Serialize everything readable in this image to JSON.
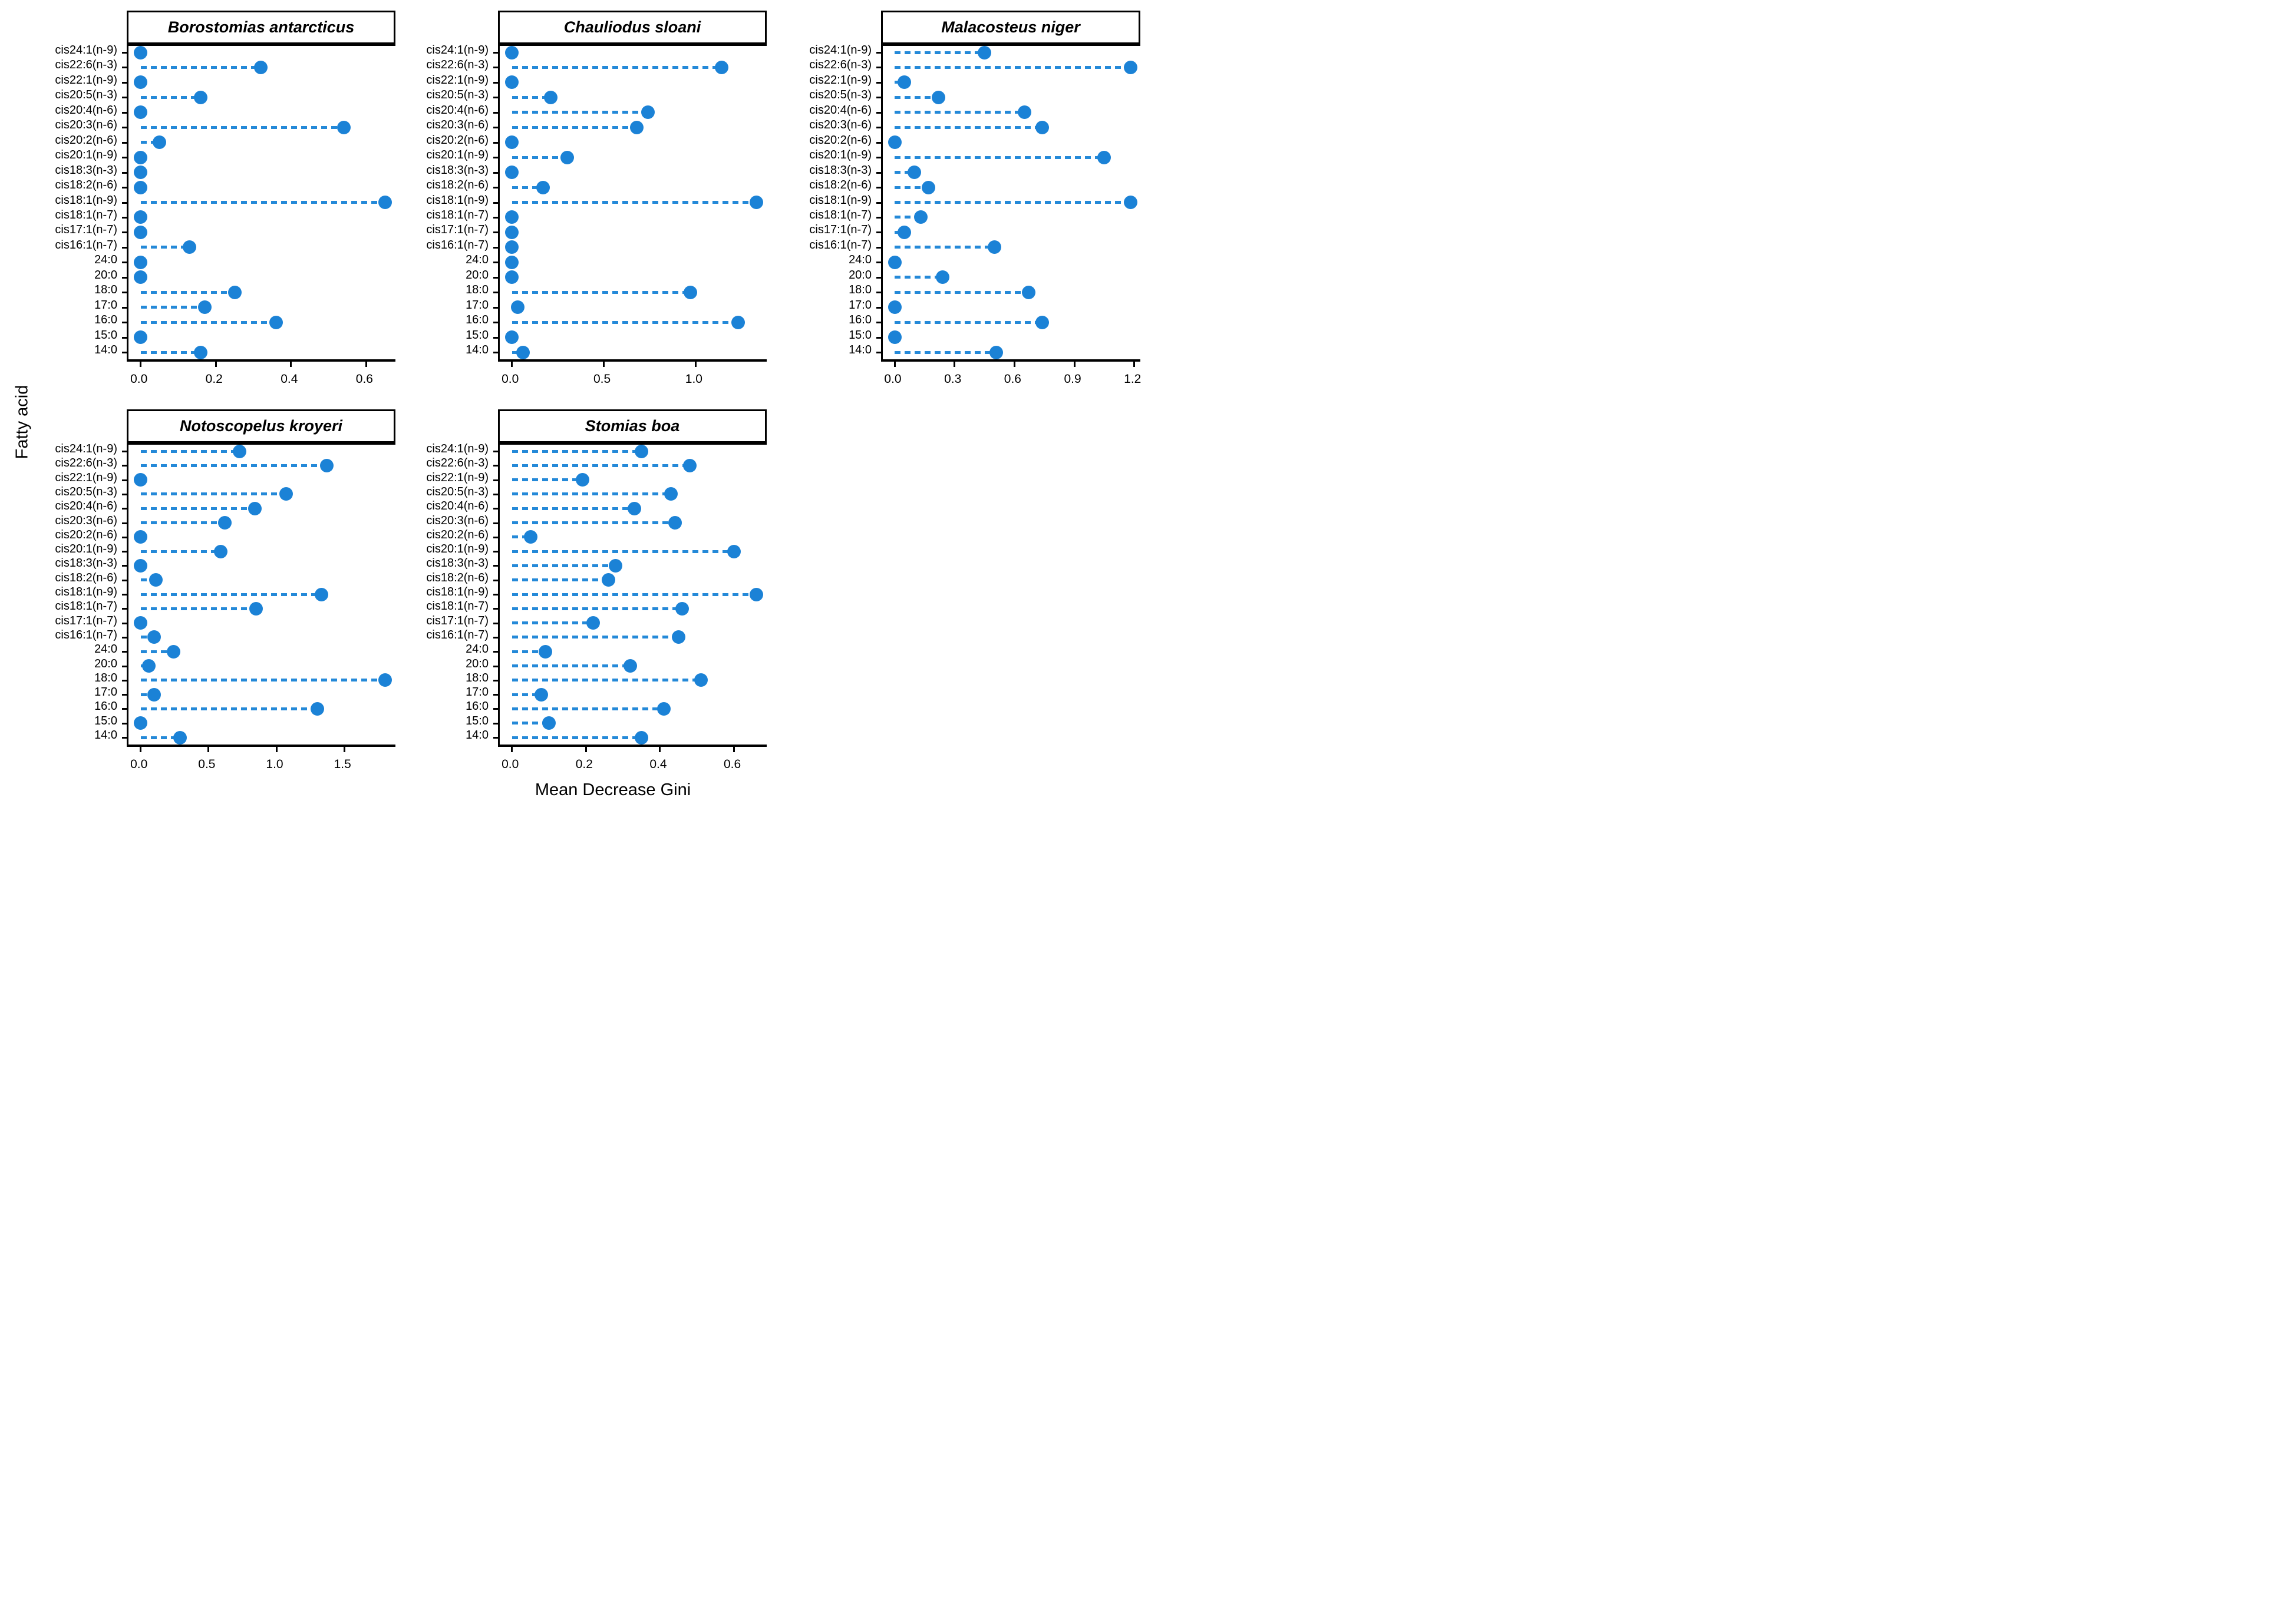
{
  "figure": {
    "xlabel": "Mean Decrease Gini",
    "ylabel": "Fatty acid"
  },
  "colors": {
    "point": "#1b82d6",
    "stem": "#2489d8",
    "text": "#000000",
    "panel_border": "#000000",
    "background": "#ffffff"
  },
  "chart_data": {
    "type": "scatter",
    "style": "lollipop, faceted dot chart, dashed stems",
    "title": "",
    "xlabel": "Mean Decrease Gini",
    "ylabel": "Fatty acid",
    "grid": false,
    "legend_position": "none",
    "categories": [
      "cis24:1(n-9)",
      "cis22:6(n-3)",
      "cis22:1(n-9)",
      "cis20:5(n-3)",
      "cis20:4(n-6)",
      "cis20:3(n-6)",
      "cis20:2(n-6)",
      "cis20:1(n-9)",
      "cis18:3(n-3)",
      "cis18:2(n-6)",
      "cis18:1(n-9)",
      "cis18:1(n-7)",
      "cis17:1(n-7)",
      "cis16:1(n-7)",
      "24:0",
      "20:0",
      "18:0",
      "17:0",
      "16:0",
      "15:0",
      "14:0"
    ],
    "panels": [
      {
        "title": "Borostomias antarcticus",
        "x_tick_values": [
          0.0,
          0.2,
          0.4,
          0.6
        ],
        "x_tick_labels": [
          "0.0",
          "0.2",
          "0.4",
          "0.6"
        ],
        "xlim": [
          -0.0325,
          0.6825
        ],
        "values": [
          0.0,
          0.32,
          0.0,
          0.16,
          0.0,
          0.54,
          0.05,
          0.0,
          0.0,
          0.0,
          0.65,
          0.0,
          0.0,
          0.13,
          0.0,
          0.0,
          0.25,
          0.17,
          0.36,
          0.0,
          0.16
        ]
      },
      {
        "title": "Chauliodus sloani",
        "x_tick_values": [
          0.0,
          0.5,
          1.0
        ],
        "x_tick_labels": [
          "0.0",
          "0.5",
          "1.0"
        ],
        "xlim": [
          -0.0665,
          1.3965
        ],
        "values": [
          0.0,
          1.14,
          0.0,
          0.21,
          0.74,
          0.68,
          0.0,
          0.3,
          0.0,
          0.17,
          1.33,
          0.0,
          0.0,
          0.0,
          0.0,
          0.0,
          0.97,
          0.03,
          1.23,
          0.0,
          0.06
        ]
      },
      {
        "title": "Malacosteus niger",
        "x_tick_values": [
          0.0,
          0.3,
          0.6,
          0.9,
          1.2
        ],
        "x_tick_labels": [
          "0.0",
          "0.3",
          "0.6",
          "0.9",
          "1.2"
        ],
        "xlim": [
          -0.059,
          1.239
        ],
        "values": [
          0.45,
          1.18,
          0.05,
          0.22,
          0.65,
          0.74,
          0.0,
          1.05,
          0.1,
          0.17,
          1.18,
          0.13,
          0.05,
          0.5,
          0.0,
          0.24,
          0.67,
          0.0,
          0.74,
          0.0,
          0.51
        ]
      },
      {
        "title": "Notoscopelus kroyeri",
        "x_tick_values": [
          0.0,
          0.5,
          1.0,
          1.5
        ],
        "x_tick_labels": [
          "0.0",
          "0.5",
          "1.0",
          "1.5"
        ],
        "xlim": [
          -0.09,
          1.89
        ],
        "values": [
          0.73,
          1.37,
          0.0,
          1.07,
          0.84,
          0.62,
          0.0,
          0.59,
          0.0,
          0.11,
          1.33,
          0.85,
          0.0,
          0.1,
          0.24,
          0.06,
          1.8,
          0.1,
          1.3,
          0.0,
          0.29
        ]
      },
      {
        "title": "Stomias boa",
        "x_tick_values": [
          0.0,
          0.2,
          0.4,
          0.6
        ],
        "x_tick_labels": [
          "0.0",
          "0.2",
          "0.4",
          "0.6"
        ],
        "xlim": [
          -0.033,
          0.693
        ],
        "values": [
          0.35,
          0.48,
          0.19,
          0.43,
          0.33,
          0.44,
          0.05,
          0.6,
          0.28,
          0.26,
          0.66,
          0.46,
          0.22,
          0.45,
          0.09,
          0.32,
          0.51,
          0.08,
          0.41,
          0.1,
          0.35
        ]
      }
    ]
  }
}
